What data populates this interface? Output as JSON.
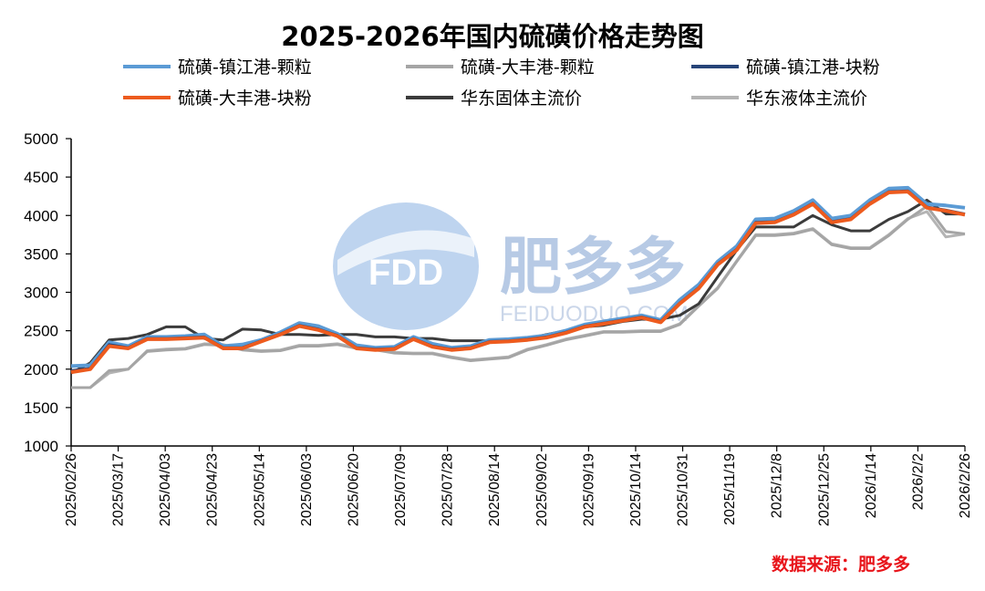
{
  "chart_data": {
    "type": "line",
    "title": "2025-2026年国内硫磺价格走势图",
    "ylim": [
      1000,
      5000
    ],
    "yticks": [
      1000,
      1500,
      2000,
      2500,
      3000,
      3500,
      4000,
      4500,
      5000
    ],
    "xtick_labels": [
      "2025/02/26",
      "2025/03/17",
      "2025/04/03",
      "2025/04/23",
      "2025/05/14",
      "2025/06/03",
      "2025/06/20",
      "2025/07/09",
      "2025/07/28",
      "2025/08/14",
      "2025/09/02",
      "2025/09/19",
      "2025/10/14",
      "2025/10/31",
      "2025/11/19",
      "2025/12/8",
      "2025/12/25",
      "2026/1/14",
      "2026/2/2",
      "2026/2/26"
    ],
    "legend_position": "top",
    "series": [
      {
        "name": "硫磺-镇江港-颗粒",
        "color": "#5b9bd5",
        "width": 4,
        "values": [
          2040,
          2050,
          2350,
          2300,
          2420,
          2420,
          2430,
          2450,
          2300,
          2320,
          2380,
          2480,
          2600,
          2560,
          2460,
          2310,
          2280,
          2290,
          2420,
          2330,
          2280,
          2300,
          2380,
          2390,
          2410,
          2440,
          2500,
          2580,
          2620,
          2660,
          2700,
          2640,
          2900,
          3100,
          3400,
          3600,
          3950,
          3960,
          4060,
          4200,
          3960,
          4000,
          4200,
          4350,
          4360,
          4150,
          4130,
          4100
        ]
      },
      {
        "name": "硫磺-大丰港-颗粒",
        "color": "#a5a5a5",
        "width": 3,
        "values": [
          1760,
          1760,
          1980,
          2000,
          2230,
          2250,
          2260,
          2320,
          2310,
          2250,
          2230,
          2240,
          2300,
          2300,
          2320,
          2270,
          2250,
          2210,
          2200,
          2200,
          2150,
          2110,
          2130,
          2150,
          2250,
          2310,
          2380,
          2430,
          2480,
          2480,
          2490,
          2490,
          2580,
          2820,
          3050,
          3400,
          3740,
          3740,
          3760,
          3820,
          3620,
          3570,
          3570,
          3740,
          3950,
          4120,
          3790,
          3760
        ]
      },
      {
        "name": "硫磺-镇江港-块粉",
        "color": "#264478",
        "width": 3,
        "values": [
          1980,
          2010,
          2320,
          2280,
          2400,
          2400,
          2410,
          2420,
          2280,
          2280,
          2370,
          2460,
          2570,
          2520,
          2440,
          2280,
          2260,
          2270,
          2400,
          2300,
          2260,
          2280,
          2360,
          2370,
          2390,
          2420,
          2480,
          2560,
          2600,
          2640,
          2680,
          2620,
          2860,
          3060,
          3370,
          3560,
          3910,
          3920,
          4020,
          4160,
          3920,
          3960,
          4160,
          4310,
          4320,
          4110,
          4070,
          4020
        ]
      },
      {
        "name": "硫磺-大丰港-块粉",
        "color": "#ed5b1e",
        "width": 4,
        "values": [
          1960,
          2000,
          2300,
          2270,
          2390,
          2390,
          2400,
          2410,
          2270,
          2270,
          2360,
          2450,
          2560,
          2510,
          2430,
          2270,
          2250,
          2260,
          2390,
          2290,
          2250,
          2270,
          2350,
          2360,
          2380,
          2410,
          2470,
          2550,
          2590,
          2630,
          2670,
          2610,
          2850,
          3050,
          3360,
          3550,
          3900,
          3910,
          4010,
          4150,
          3910,
          3950,
          4150,
          4300,
          4310,
          4100,
          4060,
          4010
        ]
      },
      {
        "name": "华东固体主流价",
        "color": "#3b3b3b",
        "width": 3,
        "values": [
          1950,
          2080,
          2380,
          2400,
          2450,
          2550,
          2550,
          2400,
          2380,
          2520,
          2510,
          2450,
          2450,
          2440,
          2450,
          2450,
          2420,
          2420,
          2400,
          2400,
          2370,
          2370,
          2370,
          2380,
          2400,
          2450,
          2500,
          2550,
          2570,
          2620,
          2650,
          2650,
          2700,
          2850,
          3200,
          3550,
          3850,
          3850,
          3850,
          4000,
          3880,
          3800,
          3800,
          3950,
          4050,
          4200,
          4020,
          4020
        ]
      },
      {
        "name": "华东液体主流价",
        "color": "#b4b4b4",
        "width": 3,
        "values": [
          1760,
          1760,
          1950,
          2000,
          2240,
          2260,
          2270,
          2330,
          2320,
          2260,
          2240,
          2250,
          2310,
          2310,
          2330,
          2280,
          2260,
          2220,
          2210,
          2210,
          2160,
          2120,
          2140,
          2160,
          2260,
          2320,
          2390,
          2440,
          2490,
          2490,
          2500,
          2500,
          2590,
          2830,
          3060,
          3410,
          3750,
          3750,
          3770,
          3830,
          3630,
          3580,
          3580,
          3750,
          3960,
          4050,
          3720,
          3760
        ]
      }
    ]
  },
  "watermark": {
    "brand_cn": "肥多多",
    "brand_en": "FEIDUODUO.COM",
    "logo": "FDD"
  },
  "source": "数据来源：肥多多"
}
